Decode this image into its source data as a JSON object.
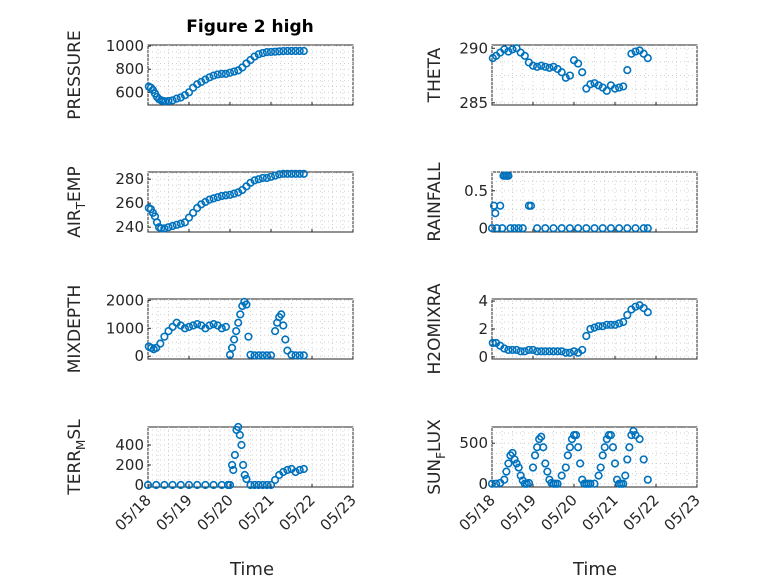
{
  "figure": {
    "title": "Figure 2 high",
    "xlabel": "Time"
  },
  "colors": {
    "marker": "#0072BD",
    "axis": "#262626",
    "grid": "#d0d0d0"
  },
  "chart_data": [
    {
      "id": "pressure",
      "type": "scatter",
      "ylabel": "PRESSURE",
      "ylabel_sub": null,
      "ylim": [
        490,
        1010
      ],
      "yticks": [
        "600",
        "800",
        "1000"
      ],
      "ytick_values": [
        600,
        800,
        1000
      ],
      "xticks": [
        "05/18",
        "05/19",
        "05/20",
        "05/21",
        "05/22",
        "05/23"
      ],
      "show_xticks": false,
      "grid": true,
      "x": [
        0.02,
        0.07,
        0.12,
        0.17,
        0.22,
        0.27,
        0.32,
        0.37,
        0.42,
        0.5,
        0.6,
        0.7,
        0.8,
        0.9,
        1.0,
        1.1,
        1.2,
        1.3,
        1.4,
        1.5,
        1.6,
        1.7,
        1.8,
        1.9,
        2.0,
        2.1,
        2.2,
        2.3,
        2.4,
        2.5,
        2.6,
        2.7,
        2.8,
        2.9,
        3.0,
        3.1,
        3.2,
        3.3,
        3.4,
        3.5,
        3.6,
        3.7,
        3.8
      ],
      "y": [
        650,
        640,
        620,
        590,
        560,
        540,
        530,
        525,
        522,
        525,
        530,
        545,
        555,
        575,
        600,
        640,
        670,
        690,
        710,
        730,
        745,
        755,
        760,
        760,
        770,
        780,
        790,
        815,
        850,
        880,
        910,
        930,
        940,
        948,
        950,
        952,
        955,
        957,
        958,
        958,
        958,
        958,
        958
      ]
    },
    {
      "id": "theta",
      "type": "scatter",
      "ylabel": "THETA",
      "ylabel_sub": null,
      "ylim": [
        284.8,
        290.3
      ],
      "yticks": [
        "285",
        "290"
      ],
      "ytick_values": [
        285,
        290
      ],
      "xticks": [
        "05/18",
        "05/19",
        "05/20",
        "05/21",
        "05/22",
        "05/23"
      ],
      "show_xticks": false,
      "grid": true,
      "x": [
        0.02,
        0.1,
        0.2,
        0.3,
        0.4,
        0.5,
        0.6,
        0.7,
        0.8,
        0.9,
        1.0,
        1.1,
        1.2,
        1.3,
        1.4,
        1.5,
        1.6,
        1.7,
        1.8,
        1.9,
        2.0,
        2.1,
        2.2,
        2.3,
        2.4,
        2.5,
        2.6,
        2.7,
        2.8,
        2.9,
        3.0,
        3.1,
        3.2,
        3.3,
        3.4,
        3.5,
        3.6,
        3.7,
        3.8
      ],
      "y": [
        289.1,
        289.3,
        289.6,
        289.9,
        289.7,
        289.9,
        290.0,
        289.6,
        289.3,
        288.7,
        288.4,
        288.3,
        288.4,
        288.3,
        288.2,
        288.3,
        288.1,
        287.8,
        287.3,
        287.5,
        288.9,
        288.6,
        287.8,
        286.3,
        286.7,
        286.8,
        286.6,
        286.4,
        286.1,
        286.6,
        286.3,
        286.4,
        286.5,
        288.0,
        289.5,
        289.7,
        289.8,
        289.5,
        289.1
      ]
    },
    {
      "id": "air_temp",
      "type": "scatter",
      "ylabel": "AIR",
      "ylabel_sub": "T",
      "ylabel_rest": "EMP",
      "ylim": [
        236,
        286
      ],
      "yticks": [
        "240",
        "260",
        "280"
      ],
      "ytick_values": [
        240,
        260,
        280
      ],
      "xticks": [
        "05/18",
        "05/19",
        "05/20",
        "05/21",
        "05/22",
        "05/23"
      ],
      "show_xticks": false,
      "grid": true,
      "x": [
        0.02,
        0.07,
        0.12,
        0.17,
        0.22,
        0.27,
        0.32,
        0.4,
        0.5,
        0.6,
        0.7,
        0.8,
        0.9,
        1.0,
        1.1,
        1.2,
        1.3,
        1.4,
        1.5,
        1.6,
        1.7,
        1.8,
        1.9,
        2.0,
        2.1,
        2.2,
        2.3,
        2.4,
        2.5,
        2.6,
        2.7,
        2.8,
        2.9,
        3.0,
        3.1,
        3.2,
        3.3,
        3.4,
        3.5,
        3.6,
        3.7,
        3.8
      ],
      "y": [
        256,
        255,
        252,
        249,
        244,
        240,
        239,
        239,
        240,
        241,
        242,
        243,
        244,
        248,
        252,
        256,
        259,
        261,
        263,
        264,
        265,
        266,
        266.5,
        267,
        268,
        269,
        271,
        274,
        277,
        279,
        280,
        281,
        281,
        282,
        283,
        284,
        284.5,
        284.5,
        284.5,
        284.5,
        284.5,
        284.5
      ]
    },
    {
      "id": "rainfall",
      "type": "scatter",
      "ylabel": "RAINFALL",
      "ylabel_sub": null,
      "ylim": [
        -0.05,
        0.75
      ],
      "yticks": [
        "0",
        "0.5"
      ],
      "ytick_values": [
        0,
        0.5
      ],
      "xticks": [
        "05/18",
        "05/19",
        "05/20",
        "05/21",
        "05/22",
        "05/23"
      ],
      "show_xticks": false,
      "grid": true,
      "x": [
        0.0,
        0.05,
        0.08,
        0.12,
        0.2,
        0.25,
        0.28,
        0.32,
        0.36,
        0.4,
        0.45,
        0.55,
        0.65,
        0.75,
        0.9,
        0.95,
        1.1,
        1.3,
        1.5,
        1.7,
        1.9,
        2.1,
        2.3,
        2.5,
        2.7,
        2.9,
        3.1,
        3.3,
        3.5,
        3.7,
        3.8
      ],
      "y": [
        0.0,
        0.3,
        0.2,
        0.0,
        0.3,
        0.0,
        0.7,
        0.7,
        0.7,
        0.7,
        0.0,
        0.0,
        0.0,
        0.0,
        0.3,
        0.3,
        0.0,
        0.0,
        0.0,
        0.0,
        0.0,
        0.0,
        0.0,
        0.0,
        0.0,
        0.0,
        0.0,
        0.0,
        0.0,
        0.0,
        0.0
      ]
    },
    {
      "id": "mixdepth",
      "type": "scatter",
      "ylabel": "MIXDEPTH",
      "ylabel_sub": null,
      "ylim": [
        -100,
        2050
      ],
      "yticks": [
        "0",
        "1000",
        "2000"
      ],
      "ytick_values": [
        0,
        1000,
        2000
      ],
      "xticks": [
        "05/18",
        "05/19",
        "05/20",
        "05/21",
        "05/22",
        "05/23"
      ],
      "show_xticks": false,
      "grid": true,
      "x": [
        0.02,
        0.08,
        0.14,
        0.2,
        0.3,
        0.4,
        0.5,
        0.6,
        0.7,
        0.8,
        0.9,
        1.0,
        1.1,
        1.2,
        1.3,
        1.4,
        1.5,
        1.6,
        1.7,
        1.8,
        1.9,
        2.0,
        2.05,
        2.1,
        2.15,
        2.2,
        2.25,
        2.3,
        2.35,
        2.4,
        2.45,
        2.5,
        2.6,
        2.7,
        2.8,
        2.9,
        3.0,
        3.1,
        3.15,
        3.2,
        3.25,
        3.3,
        3.35,
        3.4,
        3.5,
        3.6,
        3.7,
        3.8
      ],
      "y": [
        350,
        300,
        250,
        300,
        450,
        700,
        900,
        1050,
        1200,
        1100,
        1000,
        1050,
        1100,
        1150,
        1100,
        1000,
        1100,
        1150,
        1100,
        1000,
        1050,
        50,
        300,
        600,
        900,
        1200,
        1500,
        1800,
        1950,
        1850,
        700,
        50,
        30,
        30,
        30,
        30,
        30,
        900,
        1200,
        1400,
        1500,
        1100,
        600,
        200,
        50,
        30,
        30,
        30
      ]
    },
    {
      "id": "h2omixra",
      "type": "scatter",
      "ylabel": "H2OMIXRA",
      "ylabel_sub": null,
      "ylim": [
        -0.15,
        4.15
      ],
      "yticks": [
        "0",
        "2",
        "4"
      ],
      "ytick_values": [
        0,
        2,
        4
      ],
      "xticks": [
        "05/18",
        "05/19",
        "05/20",
        "05/21",
        "05/22",
        "05/23"
      ],
      "show_xticks": false,
      "grid": true,
      "x": [
        0.02,
        0.1,
        0.2,
        0.3,
        0.4,
        0.5,
        0.6,
        0.7,
        0.8,
        0.9,
        1.0,
        1.1,
        1.2,
        1.3,
        1.4,
        1.5,
        1.6,
        1.7,
        1.8,
        1.9,
        2.0,
        2.1,
        2.2,
        2.3,
        2.4,
        2.5,
        2.6,
        2.7,
        2.8,
        2.9,
        3.0,
        3.1,
        3.2,
        3.3,
        3.4,
        3.5,
        3.6,
        3.7,
        3.8
      ],
      "y": [
        1.0,
        1.0,
        0.8,
        0.6,
        0.5,
        0.5,
        0.5,
        0.4,
        0.4,
        0.5,
        0.5,
        0.4,
        0.4,
        0.4,
        0.4,
        0.4,
        0.4,
        0.4,
        0.3,
        0.3,
        0.4,
        0.3,
        0.5,
        1.5,
        2.0,
        2.1,
        2.2,
        2.2,
        2.3,
        2.3,
        2.3,
        2.4,
        2.5,
        3.0,
        3.4,
        3.6,
        3.7,
        3.5,
        3.2
      ]
    },
    {
      "id": "terr_msl",
      "type": "scatter",
      "ylabel": "TERR",
      "ylabel_sub": "M",
      "ylabel_rest": "SL",
      "ylim": [
        -20,
        580
      ],
      "yticks": [
        "0",
        "200",
        "400"
      ],
      "ytick_values": [
        0,
        200,
        400
      ],
      "xticks": [
        "05/18",
        "05/19",
        "05/20",
        "05/21",
        "05/22",
        "05/23"
      ],
      "show_xticks": true,
      "grid": true,
      "x": [
        0.0,
        0.2,
        0.4,
        0.6,
        0.8,
        1.0,
        1.2,
        1.4,
        1.6,
        1.8,
        1.95,
        2.0,
        2.05,
        2.08,
        2.12,
        2.16,
        2.2,
        2.24,
        2.28,
        2.32,
        2.36,
        2.4,
        2.5,
        2.6,
        2.7,
        2.8,
        2.9,
        3.0,
        3.1,
        3.2,
        3.3,
        3.4,
        3.5,
        3.6,
        3.7,
        3.8
      ],
      "y": [
        0,
        0,
        0,
        0,
        0,
        0,
        0,
        0,
        0,
        0,
        0,
        0,
        200,
        150,
        300,
        550,
        580,
        500,
        400,
        200,
        100,
        60,
        0,
        0,
        0,
        0,
        0,
        0,
        50,
        100,
        130,
        150,
        160,
        130,
        150,
        160
      ]
    },
    {
      "id": "sun_flux",
      "type": "scatter",
      "ylabel": "SUN",
      "ylabel_sub": "F",
      "ylabel_rest": "LUX",
      "ylim": [
        -40,
        700
      ],
      "yticks": [
        "0",
        "500"
      ],
      "ytick_values": [
        0,
        500
      ],
      "xticks": [
        "05/18",
        "05/19",
        "05/20",
        "05/21",
        "05/22",
        "05/23"
      ],
      "show_xticks": true,
      "grid": true,
      "x": [
        0.0,
        0.1,
        0.2,
        0.3,
        0.35,
        0.4,
        0.45,
        0.5,
        0.55,
        0.6,
        0.65,
        0.7,
        0.75,
        0.8,
        0.85,
        0.9,
        1.0,
        1.05,
        1.1,
        1.15,
        1.2,
        1.25,
        1.3,
        1.35,
        1.4,
        1.45,
        1.5,
        1.55,
        1.6,
        1.7,
        1.8,
        1.85,
        1.9,
        1.95,
        2.0,
        2.05,
        2.1,
        2.15,
        2.2,
        2.25,
        2.3,
        2.35,
        2.4,
        2.5,
        2.6,
        2.65,
        2.7,
        2.75,
        2.8,
        2.85,
        2.9,
        2.95,
        3.0,
        3.05,
        3.1,
        3.15,
        3.2,
        3.25,
        3.3,
        3.35,
        3.4,
        3.45,
        3.5,
        3.6,
        3.7,
        3.8
      ],
      "y": [
        0,
        0,
        10,
        50,
        150,
        250,
        350,
        380,
        300,
        250,
        200,
        100,
        40,
        0,
        0,
        10,
        200,
        350,
        450,
        550,
        580,
        450,
        250,
        150,
        50,
        10,
        0,
        0,
        0,
        100,
        200,
        350,
        450,
        550,
        600,
        600,
        450,
        250,
        50,
        0,
        0,
        0,
        0,
        0,
        100,
        200,
        350,
        450,
        550,
        600,
        600,
        450,
        250,
        50,
        0,
        0,
        0,
        100,
        300,
        450,
        600,
        650,
        600,
        550,
        300,
        50
      ]
    }
  ]
}
